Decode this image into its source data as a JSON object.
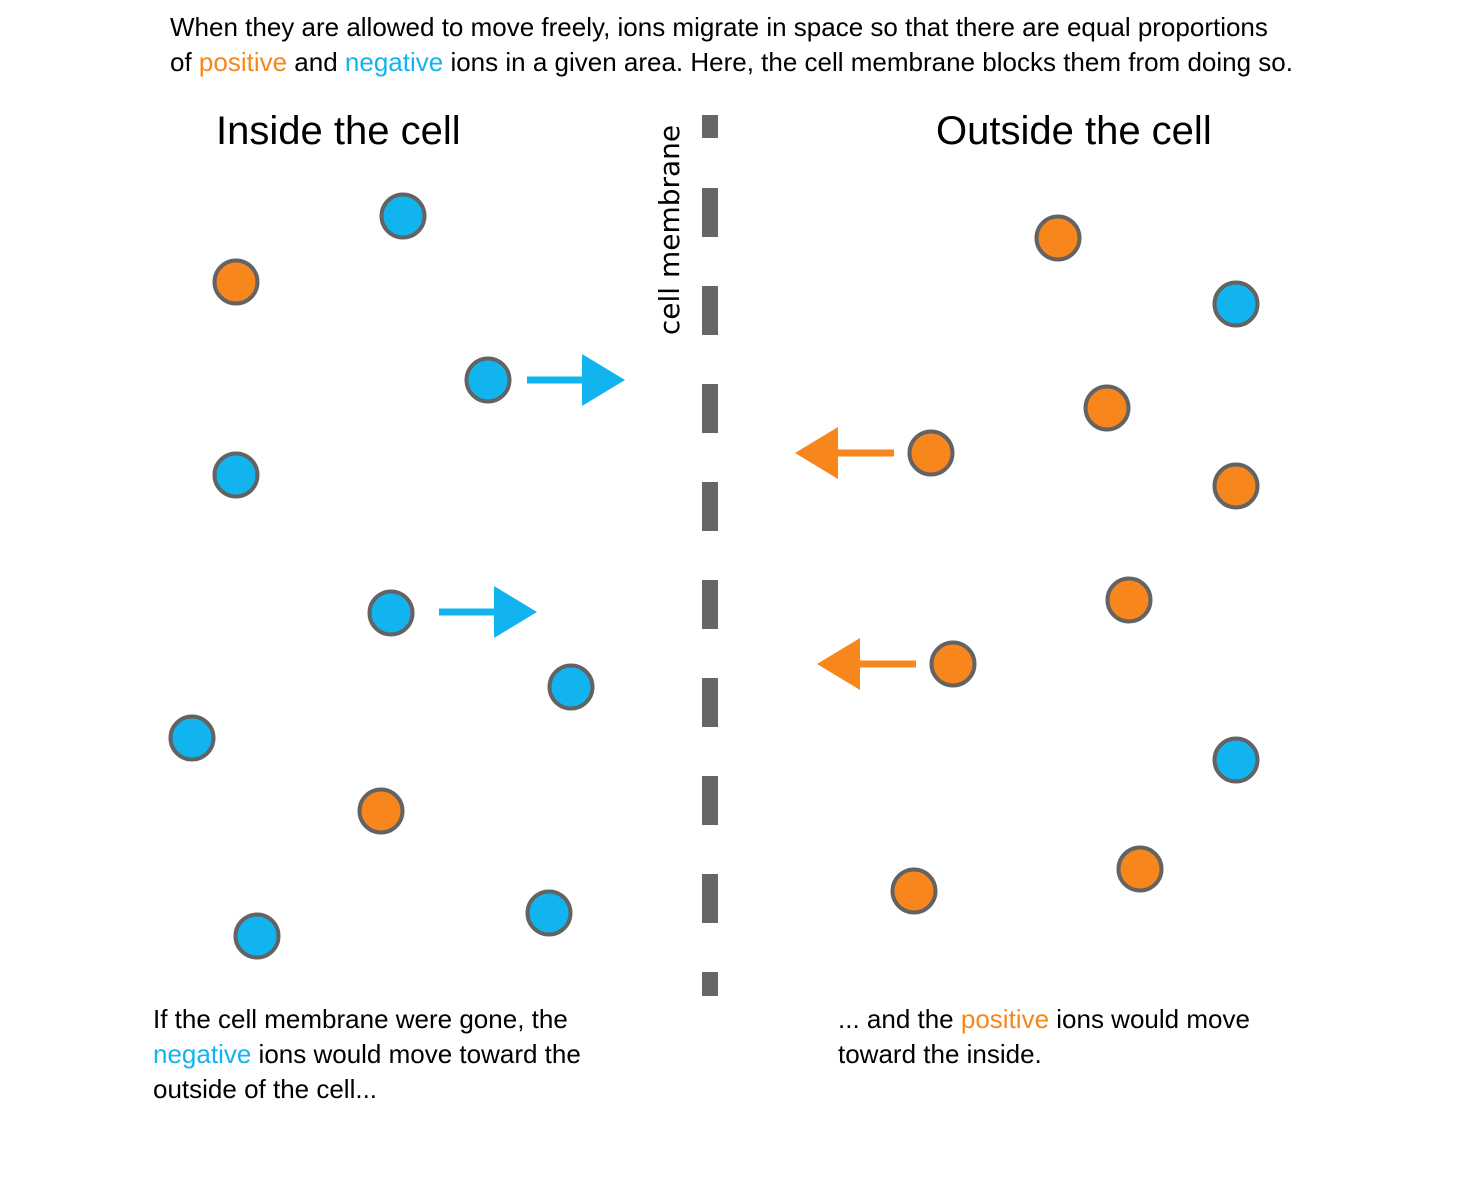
{
  "intro": {
    "line1": "When they are allowed to move freely, ions migrate in space so that there are equal proportions",
    "line2_pre": "of ",
    "positive_word": "positive",
    "line2_mid": " and ",
    "negative_word": "negative",
    "line2_post": " ions in a given area. Here, the cell membrane blocks them from doing so."
  },
  "headings": {
    "inside": "Inside the cell",
    "outside": "Outside the cell"
  },
  "membrane": {
    "label": "cell membrane"
  },
  "captions": {
    "left_line1": "If the cell membrane were gone, the",
    "left_negative_word": "negative",
    "left_line2_post": " ions would move toward the",
    "left_line3": "outside of the cell...",
    "right_line1_pre": "... and the ",
    "right_positive_word": "positive",
    "right_line1_post": " ions would move",
    "right_line2": "toward the inside."
  },
  "colors": {
    "positive": "#f7861c",
    "negative": "#12b4f0",
    "ion_outline": "#636363",
    "membrane": "#666666",
    "text": "#000000"
  },
  "ions": {
    "inside": [
      "negative",
      "positive",
      "negative",
      "negative",
      "negative",
      "negative",
      "negative",
      "positive",
      "negative",
      "negative"
    ],
    "outside": [
      "positive",
      "negative",
      "positive",
      "positive",
      "positive",
      "positive",
      "positive",
      "negative",
      "positive",
      "positive"
    ]
  },
  "arrows": {
    "inside": [
      "negative",
      "negative"
    ],
    "outside": [
      "positive",
      "positive"
    ]
  }
}
